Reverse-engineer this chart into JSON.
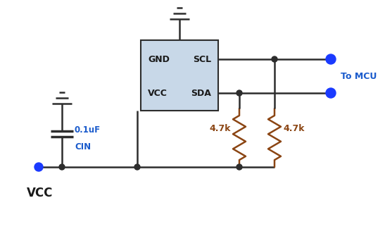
{
  "bg_color": "#ffffff",
  "line_color": "#2d2d2d",
  "component_fill": "#c8d8e8",
  "blue_dot_color": "#1a3aff",
  "resistor_color": "#8B4513",
  "text_color_dark": "#1a1a1a",
  "text_color_blue": "#1a5bcc",
  "vcc_label": "VCC",
  "cin_label": "CIN",
  "cap_label": "0.1uF",
  "r1_label": "4.7k",
  "r2_label": "4.7k",
  "mcu_label": "To MCU",
  "figsize": [
    5.47,
    3.42
  ],
  "dpi": 100
}
